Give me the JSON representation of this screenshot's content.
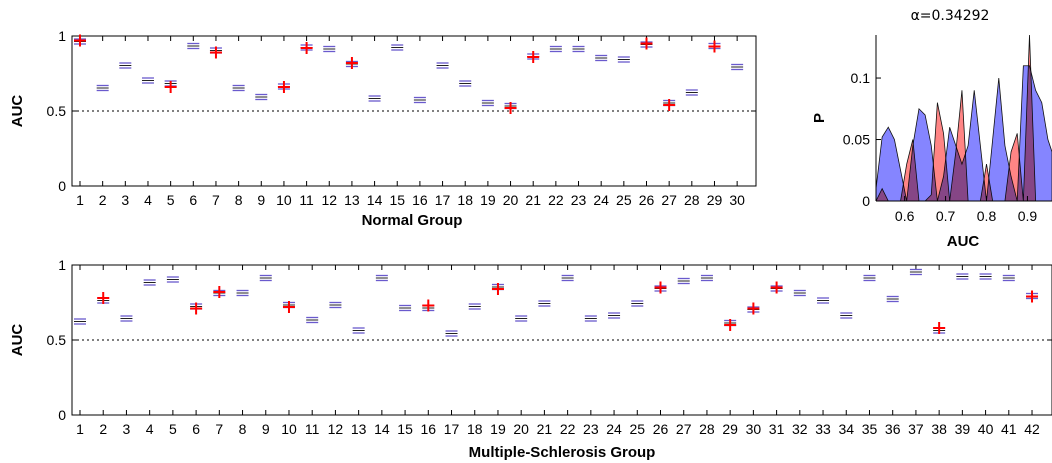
{
  "chart_data": [
    {
      "type": "scatter",
      "title": "",
      "xlabel": "Normal Group",
      "ylabel": "AUC",
      "ylim": [
        0,
        1
      ],
      "yticks": [
        0,
        0.5,
        1
      ],
      "ytick_labels": [
        "0",
        "0.5",
        "1"
      ],
      "reference_line": 0.5,
      "categories": [
        "1",
        "2",
        "3",
        "4",
        "5",
        "6",
        "7",
        "8",
        "9",
        "10",
        "11",
        "12",
        "13",
        "14",
        "15",
        "16",
        "17",
        "18",
        "19",
        "20",
        "21",
        "22",
        "23",
        "24",
        "25",
        "26",
        "27",
        "28",
        "29",
        "30"
      ],
      "series": [
        {
          "values": [
            0.96,
            0.65,
            0.8,
            0.7,
            0.68,
            0.93,
            0.9,
            0.65,
            0.59,
            0.66,
            0.92,
            0.91,
            0.81,
            0.58,
            0.92,
            0.57,
            0.8,
            0.68,
            0.55,
            0.53,
            0.86,
            0.91,
            0.91,
            0.85,
            0.84,
            0.94,
            0.55,
            0.62,
            0.93,
            0.79
          ],
          "color": "#6a5acd"
        },
        {
          "values": [
            0.97,
            null,
            null,
            null,
            0.66,
            null,
            0.89,
            null,
            null,
            0.66,
            0.92,
            null,
            0.82,
            null,
            null,
            null,
            null,
            null,
            null,
            0.52,
            0.86,
            null,
            null,
            null,
            null,
            0.95,
            0.54,
            null,
            0.93,
            null
          ],
          "color": "#ff0000"
        }
      ]
    },
    {
      "type": "area",
      "title": "α=0.34292",
      "xlabel": "AUC",
      "ylabel": "P",
      "xlim": [
        0.53,
        0.96
      ],
      "ylim": [
        0,
        0.135
      ],
      "xticks": [
        0.6,
        0.7,
        0.8,
        0.9
      ],
      "xtick_labels": [
        "0.6",
        "0.7",
        "0.8",
        "0.9"
      ],
      "yticks": [
        0,
        0.05,
        0.1
      ],
      "ytick_labels": [
        "0",
        "0.05",
        "0.1"
      ],
      "x": [
        0.53,
        0.545,
        0.56,
        0.575,
        0.59,
        0.605,
        0.62,
        0.635,
        0.65,
        0.665,
        0.68,
        0.695,
        0.71,
        0.725,
        0.74,
        0.755,
        0.77,
        0.785,
        0.8,
        0.815,
        0.83,
        0.845,
        0.86,
        0.875,
        0.89,
        0.905,
        0.92,
        0.935,
        0.95,
        0.96
      ],
      "series": [
        {
          "values": [
            0.01,
            0.052,
            0.06,
            0.05,
            0.025,
            0.0,
            0.045,
            0.075,
            0.07,
            0.045,
            0.0,
            0.02,
            0.06,
            0.045,
            0.03,
            0.045,
            0.09,
            0.045,
            0.0,
            0.05,
            0.1,
            0.045,
            0.02,
            0.0,
            0.11,
            0.11,
            0.09,
            0.08,
            0.05,
            0.04
          ],
          "color": "#6666ff"
        },
        {
          "values": [
            0.0,
            0.01,
            0.0,
            0.0,
            0.0,
            0.03,
            0.05,
            0.0,
            0.0,
            0.005,
            0.08,
            0.055,
            0.0,
            0.04,
            0.09,
            0.0,
            0.0,
            0.0,
            0.03,
            0.0,
            0.0,
            0.0,
            0.04,
            0.055,
            0.0,
            0.135,
            0.0,
            0.0,
            0.0,
            0.0
          ],
          "color": "#ff6666"
        }
      ]
    },
    {
      "type": "scatter",
      "title": "",
      "xlabel": "Multiple-Schlerosis Group",
      "ylabel": "AUC",
      "ylim": [
        0,
        1
      ],
      "yticks": [
        0,
        0.5,
        1
      ],
      "ytick_labels": [
        "0",
        "0.5",
        "1"
      ],
      "reference_line": 0.5,
      "categories": [
        "1",
        "2",
        "3",
        "4",
        "5",
        "6",
        "7",
        "8",
        "9",
        "10",
        "11",
        "12",
        "13",
        "14",
        "15",
        "16",
        "17",
        "18",
        "19",
        "20",
        "21",
        "22",
        "23",
        "24",
        "25",
        "26",
        "27",
        "28",
        "29",
        "30",
        "31",
        "32",
        "33",
        "34",
        "35",
        "36",
        "37",
        "38",
        "39",
        "40",
        "41",
        "42"
      ],
      "series": [
        {
          "values": [
            0.62,
            0.76,
            0.64,
            0.88,
            0.9,
            0.72,
            0.81,
            0.81,
            0.91,
            0.73,
            0.63,
            0.73,
            0.56,
            0.91,
            0.71,
            0.71,
            0.54,
            0.72,
            0.85,
            0.64,
            0.74,
            0.91,
            0.64,
            0.66,
            0.74,
            0.84,
            0.89,
            0.91,
            0.61,
            0.7,
            0.84,
            0.81,
            0.76,
            0.66,
            0.91,
            0.77,
            0.95,
            0.56,
            0.92,
            0.92,
            0.91,
            0.79
          ],
          "color": "#6a5acd"
        },
        {
          "values": [
            null,
            0.78,
            null,
            null,
            null,
            0.71,
            0.82,
            null,
            null,
            0.72,
            null,
            null,
            null,
            null,
            null,
            0.73,
            null,
            null,
            0.84,
            null,
            null,
            null,
            null,
            null,
            null,
            0.85,
            null,
            null,
            0.6,
            0.71,
            0.85,
            null,
            null,
            null,
            null,
            null,
            null,
            0.58,
            null,
            null,
            null,
            0.79
          ],
          "color": "#ff0000"
        }
      ]
    }
  ]
}
